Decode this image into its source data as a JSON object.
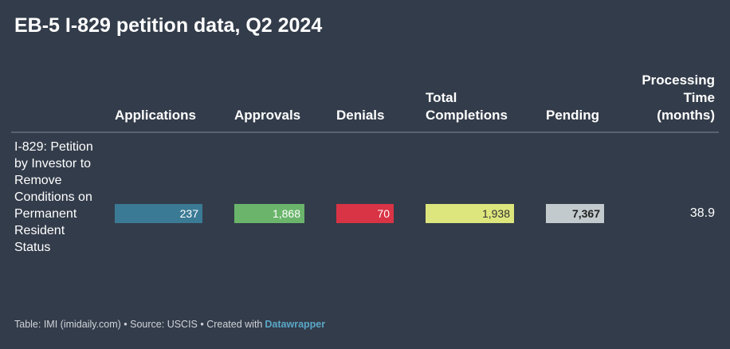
{
  "title": "EB-5 I-829 petition data, Q2 2024",
  "table": {
    "headers": [
      "Applications",
      "Approvals",
      "Denials",
      "Total Completions",
      "Pending",
      "Processing Time (months)"
    ],
    "rows": [
      [
        "I-829: Petition by Investor to Remove Conditions on Permanent Resident Status",
        "237",
        "1,868",
        "70",
        "1,938",
        "7,367",
        "38.9"
      ]
    ]
  },
  "footer": {
    "text": "Table: IMI (imidaily.com) • Source: USCIS • Created with",
    "link": "Datawrapper"
  }
}
